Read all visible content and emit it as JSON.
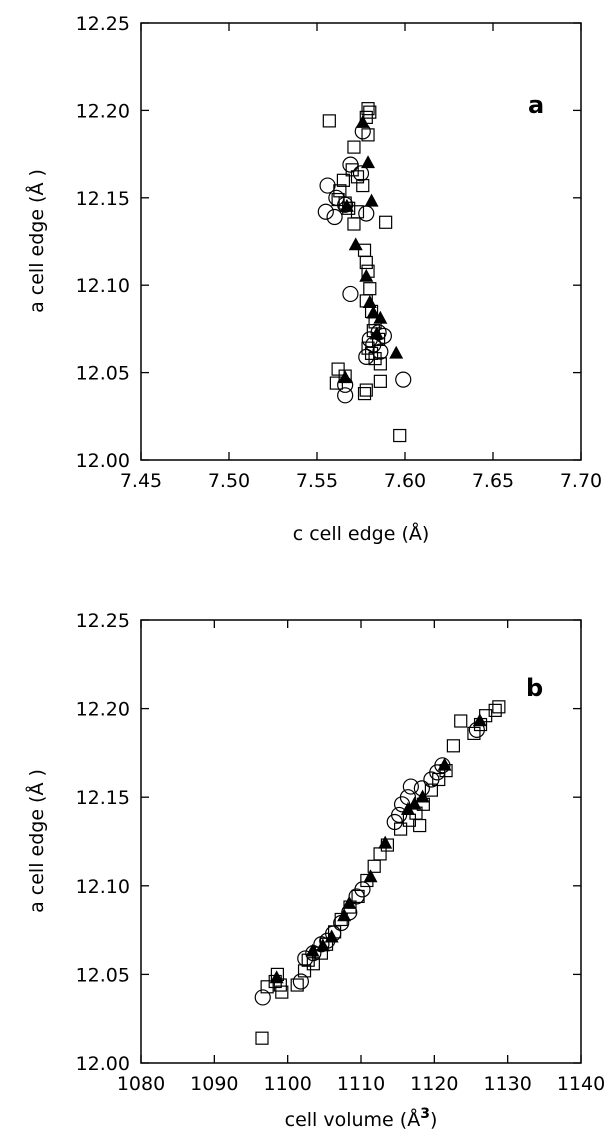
{
  "chart_data": [
    {
      "type": "scatter",
      "panel_label": "a",
      "xlabel": "c cell edge (Å)",
      "ylabel": "a cell edge (Å )",
      "xlim": [
        7.45,
        7.7
      ],
      "ylim": [
        12.0,
        12.25
      ],
      "xticks": [
        7.45,
        7.5,
        7.55,
        7.6,
        7.65,
        7.7
      ],
      "yticks": [
        12.0,
        12.05,
        12.1,
        12.15,
        12.2,
        12.25
      ],
      "xtick_labels": [
        "7.45",
        "7.50",
        "7.55",
        "7.60",
        "7.65",
        "7.70"
      ],
      "ytick_labels": [
        "12.00",
        "12.05",
        "12.10",
        "12.15",
        "12.20",
        "12.25"
      ],
      "series": [
        {
          "marker": "open-square",
          "points": [
            [
              7.557,
              12.194
            ],
            [
              7.579,
              12.201
            ],
            [
              7.58,
              12.199
            ],
            [
              7.578,
              12.196
            ],
            [
              7.579,
              12.186
            ],
            [
              7.571,
              12.179
            ],
            [
              7.57,
              12.166
            ],
            [
              7.573,
              12.162
            ],
            [
              7.565,
              12.16
            ],
            [
              7.563,
              12.154
            ],
            [
              7.576,
              12.157
            ],
            [
              7.562,
              12.149
            ],
            [
              7.566,
              12.147
            ],
            [
              7.568,
              12.144
            ],
            [
              7.573,
              12.142
            ],
            [
              7.571,
              12.135
            ],
            [
              7.589,
              12.136
            ],
            [
              7.577,
              12.12
            ],
            [
              7.578,
              12.113
            ],
            [
              7.579,
              12.108
            ],
            [
              7.58,
              12.098
            ],
            [
              7.578,
              12.091
            ],
            [
              7.581,
              12.085
            ],
            [
              7.583,
              12.079
            ],
            [
              7.582,
              12.074
            ],
            [
              7.585,
              12.069
            ],
            [
              7.579,
              12.064
            ],
            [
              7.581,
              12.061
            ],
            [
              7.583,
              12.058
            ],
            [
              7.586,
              12.055
            ],
            [
              7.562,
              12.052
            ],
            [
              7.566,
              12.048
            ],
            [
              7.561,
              12.044
            ],
            [
              7.578,
              12.04
            ],
            [
              7.577,
              12.038
            ],
            [
              7.586,
              12.045
            ],
            [
              7.597,
              12.014
            ]
          ]
        },
        {
          "marker": "open-circle",
          "points": [
            [
              7.576,
              12.188
            ],
            [
              7.569,
              12.169
            ],
            [
              7.575,
              12.164
            ],
            [
              7.556,
              12.157
            ],
            [
              7.561,
              12.15
            ],
            [
              7.566,
              12.146
            ],
            [
              7.555,
              12.142
            ],
            [
              7.56,
              12.139
            ],
            [
              7.578,
              12.141
            ],
            [
              7.569,
              12.095
            ],
            [
              7.585,
              12.073
            ],
            [
              7.58,
              12.069
            ],
            [
              7.588,
              12.071
            ],
            [
              7.582,
              12.066
            ],
            [
              7.586,
              12.062
            ],
            [
              7.578,
              12.059
            ],
            [
              7.566,
              12.043
            ],
            [
              7.566,
              12.037
            ],
            [
              7.599,
              12.046
            ]
          ]
        },
        {
          "marker": "filled-triangle",
          "points": [
            [
              7.576,
              12.193
            ],
            [
              7.579,
              12.17
            ],
            [
              7.581,
              12.148
            ],
            [
              7.567,
              12.145
            ],
            [
              7.572,
              12.123
            ],
            [
              7.578,
              12.105
            ],
            [
              7.58,
              12.09
            ],
            [
              7.582,
              12.084
            ],
            [
              7.586,
              12.081
            ],
            [
              7.584,
              12.072
            ],
            [
              7.595,
              12.061
            ],
            [
              7.566,
              12.047
            ]
          ]
        }
      ]
    },
    {
      "type": "scatter",
      "panel_label": "b",
      "xlabel": "cell volume (Å",
      "xlabel_superscript": "3",
      "xlabel_close": ")",
      "ylabel": "a cell edge (Å )",
      "xlim": [
        1080,
        1140
      ],
      "ylim": [
        12.0,
        12.25
      ],
      "xticks": [
        1080,
        1090,
        1100,
        1110,
        1120,
        1130,
        1140
      ],
      "yticks": [
        12.0,
        12.05,
        12.1,
        12.15,
        12.2,
        12.25
      ],
      "xtick_labels": [
        "1080",
        "1090",
        "1100",
        "1110",
        "1120",
        "1130",
        "1140"
      ],
      "ytick_labels": [
        "12.00",
        "12.05",
        "12.10",
        "12.15",
        "12.20",
        "12.25"
      ],
      "series": [
        {
          "marker": "open-square",
          "points": [
            [
              1096.5,
              12.014
            ],
            [
              1097.2,
              12.043
            ],
            [
              1098.6,
              12.05
            ],
            [
              1098.3,
              12.046
            ],
            [
              1099.2,
              12.04
            ],
            [
              1099.0,
              12.044
            ],
            [
              1101.3,
              12.044
            ],
            [
              1102.3,
              12.052
            ],
            [
              1102.8,
              12.058
            ],
            [
              1103.5,
              12.056
            ],
            [
              1104.6,
              12.062
            ],
            [
              1105.3,
              12.067
            ],
            [
              1106.4,
              12.074
            ],
            [
              1107.3,
              12.081
            ],
            [
              1108.5,
              12.088
            ],
            [
              1109.6,
              12.094
            ],
            [
              1110.8,
              12.103
            ],
            [
              1111.8,
              12.111
            ],
            [
              1112.6,
              12.118
            ],
            [
              1113.6,
              12.123
            ],
            [
              1115.4,
              12.132
            ],
            [
              1116.6,
              12.137
            ],
            [
              1117.5,
              12.141
            ],
            [
              1118.0,
              12.134
            ],
            [
              1118.5,
              12.146
            ],
            [
              1119.6,
              12.154
            ],
            [
              1120.6,
              12.16
            ],
            [
              1121.6,
              12.165
            ],
            [
              1122.6,
              12.179
            ],
            [
              1123.6,
              12.193
            ],
            [
              1125.4,
              12.186
            ],
            [
              1126.3,
              12.191
            ],
            [
              1127.0,
              12.196
            ],
            [
              1128.3,
              12.199
            ],
            [
              1128.8,
              12.201
            ]
          ]
        },
        {
          "marker": "open-circle",
          "points": [
            [
              1096.6,
              12.037
            ],
            [
              1101.8,
              12.046
            ],
            [
              1102.4,
              12.059
            ],
            [
              1103.5,
              12.062
            ],
            [
              1104.6,
              12.067
            ],
            [
              1105.4,
              12.069
            ],
            [
              1106.2,
              12.073
            ],
            [
              1107.3,
              12.079
            ],
            [
              1108.4,
              12.085
            ],
            [
              1109.4,
              12.094
            ],
            [
              1110.2,
              12.098
            ],
            [
              1114.6,
              12.136
            ],
            [
              1115.2,
              12.14
            ],
            [
              1115.6,
              12.146
            ],
            [
              1116.4,
              12.15
            ],
            [
              1116.8,
              12.156
            ],
            [
              1118.3,
              12.155
            ],
            [
              1119.6,
              12.16
            ],
            [
              1120.4,
              12.164
            ],
            [
              1121.1,
              12.168
            ],
            [
              1125.8,
              12.188
            ]
          ]
        },
        {
          "marker": "filled-triangle",
          "points": [
            [
              1098.5,
              12.048
            ],
            [
              1103.4,
              12.063
            ],
            [
              1104.8,
              12.066
            ],
            [
              1106.0,
              12.071
            ],
            [
              1107.7,
              12.083
            ],
            [
              1108.4,
              12.09
            ],
            [
              1111.3,
              12.105
            ],
            [
              1113.3,
              12.124
            ],
            [
              1116.4,
              12.143
            ],
            [
              1117.3,
              12.146
            ],
            [
              1118.4,
              12.15
            ],
            [
              1121.4,
              12.168
            ],
            [
              1126.2,
              12.193
            ]
          ]
        }
      ]
    }
  ]
}
